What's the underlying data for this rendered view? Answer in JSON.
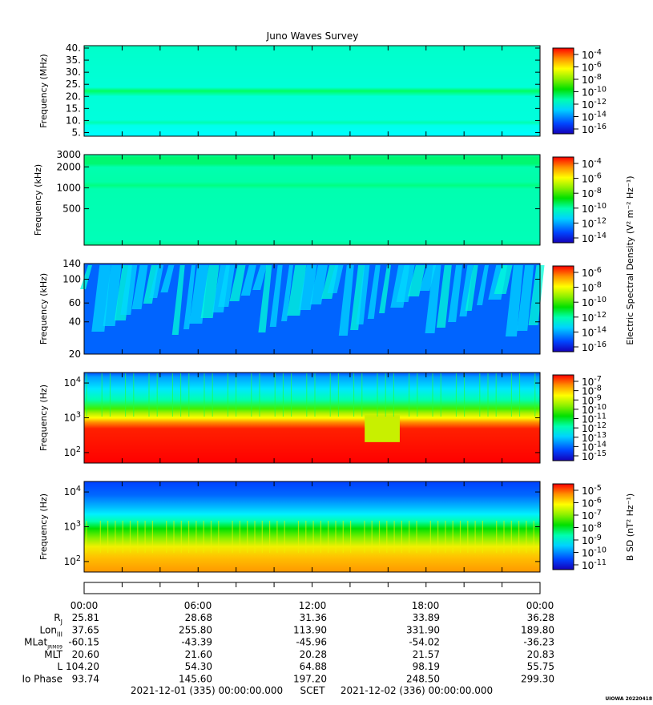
{
  "title": "Juno Waves Survey",
  "stamp": "UIOWA 20220418",
  "colorbar_label_e": "Electric Spectral Density (V² m⁻² Hz⁻¹)",
  "colorbar_label_b": "B SD (nT² Hz⁻¹)",
  "chart_data": [
    {
      "type": "heatmap",
      "ylabel": "Frequency (MHz)",
      "yticks": [
        "40.",
        "35.",
        "30.",
        "25.",
        "20.",
        "15.",
        "10.",
        "5."
      ],
      "ylim": [
        3.5,
        41
      ],
      "colorbar_ticks": [
        "10^-4",
        "10^-6",
        "10^-8",
        "10^-10",
        "10^-12",
        "10^-14",
        "10^-16"
      ],
      "bands": [
        {
          "freq": 21,
          "level": "green"
        },
        {
          "freq": 9,
          "level": "light-green"
        }
      ],
      "background": "cyan"
    },
    {
      "type": "heatmap",
      "ylabel": "Frequency (kHz)",
      "yticks": [
        "3000",
        "2000",
        "1000",
        "500"
      ],
      "ylim": [
        150,
        3000
      ],
      "colorbar_ticks": [
        "10^-4",
        "10^-6",
        "10^-8",
        "10^-10",
        "10^-12",
        "10^-14"
      ],
      "bands": [
        {
          "freq": 2500,
          "level": "green"
        },
        {
          "freq": 1100,
          "level": "light-green"
        }
      ],
      "background": "cyan-green"
    },
    {
      "type": "heatmap",
      "ylabel": "Frequency (kHz)",
      "yticks": [
        "140",
        "100",
        "60",
        "40",
        "20"
      ],
      "ylim": [
        20,
        140
      ],
      "colorbar_ticks": [
        "10^-6",
        "10^-8",
        "10^-10",
        "10^-12",
        "10^-14",
        "10^-16"
      ],
      "background": "blue",
      "features": "cyan drifting emission streaks"
    },
    {
      "type": "heatmap",
      "ylabel": "Frequency (Hz)",
      "yticks": [
        "10^4",
        "10^3",
        "10^2"
      ],
      "ylim": [
        50,
        20000
      ],
      "colorbar_ticks": [
        "10^-7",
        "10^-8",
        "10^-9",
        "10^-10",
        "10^-11",
        "10^-12",
        "10^-13",
        "10^-14",
        "10^-15"
      ],
      "emission_top_hz": [
        1500,
        1200,
        900,
        900,
        1100,
        900,
        900,
        1000,
        200,
        1000,
        1000,
        600,
        700
      ]
    },
    {
      "type": "heatmap",
      "ylabel": "Frequency (Hz)",
      "yticks": [
        "10^4",
        "10^3",
        "10^2"
      ],
      "ylim": [
        50,
        20000
      ],
      "colorbar_ticks": [
        "10^-5",
        "10^-6",
        "10^-7",
        "10^-8",
        "10^-9",
        "10^-10",
        "10^-11"
      ]
    }
  ],
  "ephemeris": {
    "times": [
      "00:00",
      "06:00",
      "12:00",
      "18:00",
      "00:00"
    ],
    "rows": [
      {
        "label": "R",
        "sub": "J",
        "values": [
          "25.81",
          "28.68",
          "31.36",
          "33.89",
          "36.28"
        ]
      },
      {
        "label": "Lon",
        "sub": "III",
        "values": [
          "37.65",
          "255.80",
          "113.90",
          "331.90",
          "189.80"
        ]
      },
      {
        "label": "MLat",
        "sub": "JRM09",
        "values": [
          "-60.15",
          "-43.39",
          "-45.96",
          "-54.02",
          "-36.23"
        ]
      },
      {
        "label": "MLT",
        "sub": "",
        "values": [
          "20.60",
          "21.60",
          "20.28",
          "21.57",
          "20.83"
        ]
      },
      {
        "label": "L",
        "sub": "",
        "values": [
          "104.20",
          "54.30",
          "64.88",
          "98.19",
          "55.75"
        ]
      },
      {
        "label": "Io Phase",
        "sub": "",
        "values": [
          "93.74",
          "145.60",
          "197.20",
          "248.50",
          "299.30"
        ]
      }
    ],
    "start": "2021-12-01 (335) 00:00:00.000",
    "scet": "SCET",
    "end": "2021-12-02 (336) 00:00:00.000"
  }
}
